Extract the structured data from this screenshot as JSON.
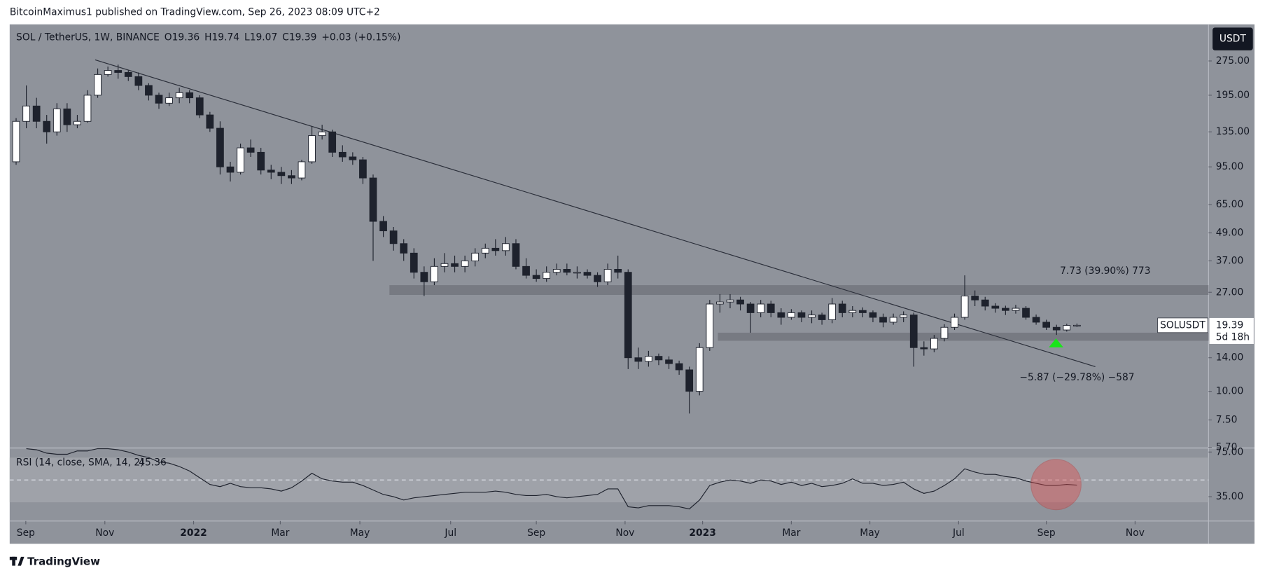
{
  "header": {
    "publisher": "BitcoinMaximus1 published on TradingView.com, Sep 26, 2023 08:09 UTC+2"
  },
  "chart_data": {
    "type": "candlestick",
    "title": "SOL / TetherUS, 1W, BINANCE",
    "ohlc_header": [
      "O19.36",
      "H19.74",
      "L19.07",
      "C19.39",
      "+0.03 (+0.15%)"
    ],
    "currency": "USDT",
    "symbol": "SOLUSDT",
    "countdown": "5d 18h",
    "log_scale": true,
    "grid": false,
    "background": "#8f939b",
    "up_color": "#ffffff",
    "down_color": "#1e222d",
    "open": [
      100,
      150,
      175,
      150,
      135,
      170,
      145,
      150,
      195,
      240,
      250,
      245,
      235,
      215,
      195,
      180,
      190,
      200,
      190,
      160,
      140,
      95,
      90,
      115,
      110,
      92,
      90,
      87,
      85,
      100,
      130,
      135,
      110,
      105,
      102,
      85,
      55,
      50,
      44,
      40,
      33,
      30,
      35,
      36,
      35,
      37,
      40,
      42,
      41,
      44,
      35,
      32,
      31,
      33,
      34,
      33,
      33,
      32,
      30,
      34,
      33,
      14,
      13.5,
      14.2,
      13.7,
      13.2,
      12.4,
      10,
      15.5,
      24,
      24.5,
      25,
      24,
      22,
      24,
      22,
      21,
      22,
      21,
      21.5,
      20.5,
      24,
      22,
      22.5,
      22,
      21,
      20,
      21,
      21.5,
      15.5,
      15.3,
      17,
      19,
      21,
      26,
      25,
      23.5,
      23,
      22.5,
      23,
      21,
      20,
      19,
      18.5,
      19.36
    ],
    "high": [
      155,
      215,
      190,
      160,
      180,
      180,
      160,
      205,
      255,
      260,
      265,
      250,
      245,
      220,
      200,
      200,
      210,
      205,
      195,
      165,
      150,
      100,
      120,
      125,
      115,
      97,
      95,
      92,
      102,
      143,
      145,
      138,
      118,
      110,
      105,
      88,
      58,
      52,
      46,
      42,
      35,
      38,
      40,
      39,
      39,
      42,
      44,
      46,
      47,
      46,
      38,
      34,
      35,
      36,
      36,
      35,
      34,
      33,
      36,
      39,
      34,
      15.5,
      15,
      14.6,
      14.2,
      13.6,
      12.8,
      16.2,
      25,
      26.5,
      26.5,
      25.8,
      24.5,
      25,
      24.8,
      23,
      22.8,
      22.5,
      22.5,
      22,
      25.5,
      24.8,
      23.5,
      23.2,
      22.5,
      21.8,
      21.8,
      22.3,
      22,
      16.5,
      17.6,
      19.6,
      21.8,
      32,
      27.5,
      25.8,
      24.2,
      23.6,
      23.8,
      23.5,
      21.6,
      20.5,
      19.5,
      19.7,
      19.74
    ],
    "low": [
      97,
      140,
      140,
      120,
      130,
      135,
      140,
      148,
      190,
      235,
      230,
      225,
      205,
      185,
      170,
      175,
      180,
      180,
      155,
      135,
      88,
      82,
      88,
      105,
      88,
      84,
      80,
      80,
      83,
      98,
      125,
      105,
      100,
      97,
      80,
      37,
      47,
      41,
      37,
      31,
      26,
      29,
      33,
      33,
      33,
      35,
      38,
      39,
      39,
      34,
      31,
      30,
      30,
      32,
      32,
      31,
      31,
      28.5,
      29,
      31,
      12.5,
      12.5,
      12.8,
      13,
      12.5,
      11.8,
      8,
      9.6,
      15,
      22,
      23,
      22.5,
      18,
      21,
      21,
      19.5,
      20.5,
      20,
      19.8,
      19.5,
      19.8,
      21,
      21,
      21,
      20,
      19,
      19.5,
      20,
      12.8,
      14.3,
      14.8,
      16.5,
      18.5,
      20.5,
      23.5,
      22.5,
      22,
      21.5,
      21.8,
      20.5,
      19.5,
      18.5,
      17.6,
      18.2,
      19.07
    ],
    "close": [
      150,
      175,
      150,
      135,
      170,
      145,
      150,
      195,
      240,
      250,
      245,
      235,
      215,
      195,
      180,
      190,
      200,
      190,
      160,
      140,
      95,
      90,
      115,
      110,
      92,
      90,
      87,
      85,
      100,
      130,
      135,
      110,
      105,
      102,
      85,
      55,
      50,
      44,
      40,
      33,
      30,
      35,
      36,
      35,
      37,
      40,
      42,
      41,
      44,
      35,
      32,
      31,
      33,
      34,
      33,
      33,
      32,
      30,
      34,
      33,
      14,
      13.5,
      14.2,
      13.7,
      13.2,
      12.4,
      10,
      15.5,
      24,
      24.5,
      25,
      24,
      22,
      24,
      22,
      21,
      22,
      21,
      21.5,
      20.5,
      24,
      22,
      22.5,
      22,
      21,
      20,
      21,
      21.5,
      15.5,
      15.3,
      17,
      19,
      21,
      26,
      25,
      23.5,
      23,
      22.5,
      23,
      21,
      20,
      19,
      18.5,
      19.36,
      19.39
    ],
    "ylim": [
      5.66,
      397
    ],
    "yticks": [
      {
        "value": 275,
        "label": "275.00"
      },
      {
        "value": 195,
        "label": "195.00"
      },
      {
        "value": 135,
        "label": "135.00"
      },
      {
        "value": 95,
        "label": "95.00"
      },
      {
        "value": 65,
        "label": "65.00"
      },
      {
        "value": 49,
        "label": "49.00"
      },
      {
        "value": 37,
        "label": "37.00"
      },
      {
        "value": 27,
        "label": "27.00"
      },
      {
        "value": 14,
        "label": "14.00"
      },
      {
        "value": 10,
        "label": "10.00"
      },
      {
        "value": 7.5,
        "label": "7.50"
      },
      {
        "value": 5.7,
        "label": "5.70"
      }
    ],
    "xlim": [
      -0.63,
      116.9
    ],
    "xticks": [
      {
        "value": 0.95,
        "label": "Sep"
      },
      {
        "value": 8.7,
        "label": "Nov"
      },
      {
        "value": 17.4,
        "label": "2022"
      },
      {
        "value": 25.9,
        "label": "Mar"
      },
      {
        "value": 33.7,
        "label": "May"
      },
      {
        "value": 42.6,
        "label": "Jul"
      },
      {
        "value": 51.0,
        "label": "Sep"
      },
      {
        "value": 59.7,
        "label": "Nov"
      },
      {
        "value": 67.3,
        "label": "2023"
      },
      {
        "value": 76.0,
        "label": "Mar"
      },
      {
        "value": 83.7,
        "label": "May"
      },
      {
        "value": 92.4,
        "label": "Jul"
      },
      {
        "value": 101.0,
        "label": "Sep"
      },
      {
        "value": 109.7,
        "label": "Nov"
      }
    ],
    "trendline": [
      [
        7.75,
        278
      ],
      [
        105.8,
        12.8
      ]
    ],
    "zones": [
      {
        "from": 36.6,
        "top": 29,
        "bottom": 26.3
      },
      {
        "from": 68.8,
        "top": 18,
        "bottom": 16.6
      }
    ],
    "annotations": [
      "7.73 (39.90%) 773",
      "−5.87 (−29.78%) −587"
    ],
    "rsi": {
      "label": "RSI (14, close, SMA, 14, 2)",
      "color": "#1e222d",
      "values": [
        null,
        78,
        77,
        74,
        73,
        73,
        76,
        76,
        78,
        78,
        77,
        75,
        72,
        70,
        66,
        65,
        62,
        58,
        52,
        46,
        44,
        47,
        44,
        43,
        43,
        42,
        40,
        43,
        49,
        56,
        51,
        49,
        48,
        48,
        45,
        41,
        37,
        35,
        32,
        34,
        35,
        36,
        37,
        38,
        39,
        39,
        39,
        40,
        39,
        37,
        36,
        36,
        37,
        35,
        34,
        35,
        36,
        37,
        42,
        42,
        26,
        25,
        27,
        27,
        27,
        26,
        24,
        32,
        45,
        48,
        50,
        49,
        47,
        50,
        49,
        46,
        48,
        45,
        47,
        44,
        45,
        47,
        51,
        47,
        47,
        45,
        46,
        48,
        42,
        38,
        40,
        45,
        51,
        60,
        57,
        55,
        55,
        53,
        52,
        49,
        47,
        45,
        45,
        46,
        45.36
      ],
      "ylim": [
        13.2,
        78.6
      ],
      "yticks": [
        {
          "value": 75,
          "label": "75.00"
        },
        {
          "value": 35,
          "label": "35.00"
        }
      ],
      "band": [
        30,
        70
      ],
      "midline": 50
    }
  },
  "footer": {
    "brand": "TradingView"
  }
}
